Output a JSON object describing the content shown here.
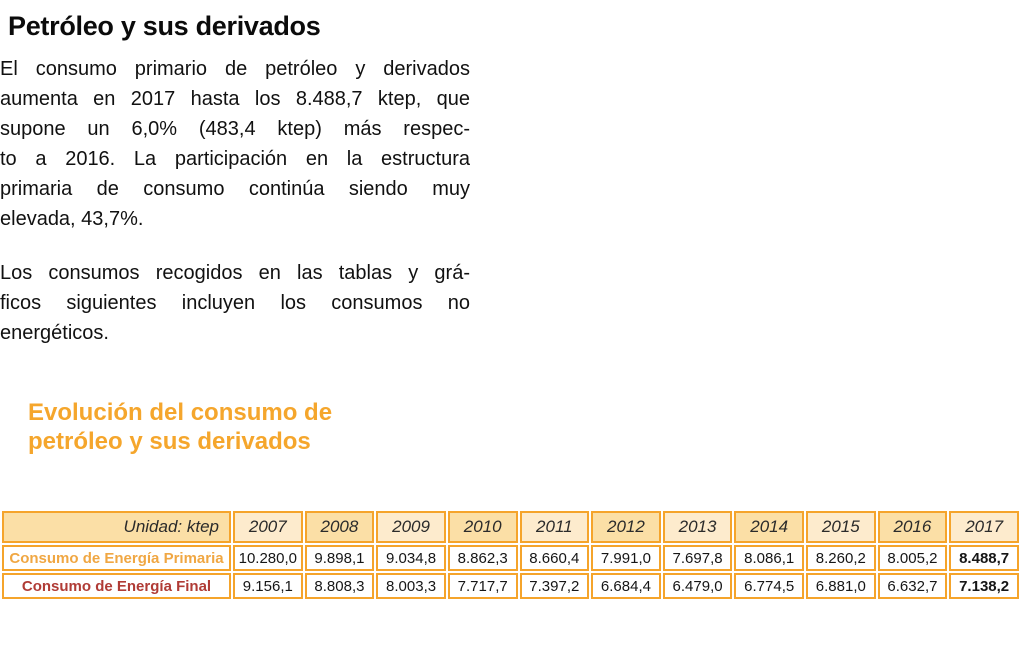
{
  "page": {
    "title": "Petróleo y sus derivados",
    "paragraphs": [
      {
        "lines": [
          "El consumo primario de petróleo y derivados",
          "aumenta en 2017 hasta los 8.488,7 ktep, que",
          "supone un 6,0% (483,4 ktep) más respec-",
          "to a 2016. La participación en la estructura",
          "primaria de consumo continúa siendo muy",
          "elevada, 43,7%."
        ]
      },
      {
        "lines": [
          "Los consumos recogidos en las tablas y grá-",
          "ficos siguientes incluyen los consumos no",
          "energéticos."
        ]
      }
    ],
    "section_heading": {
      "lines": [
        "Evolución del consumo de",
        "petróleo y sus derivados"
      ]
    }
  },
  "colors": {
    "accent_orange": "#F5A62C",
    "table_border_orange": "#F5A42B",
    "header_tan": "#FBDFA6",
    "header_cream": "#FDEBCD",
    "primary_row_label": "#F0A743",
    "final_row_label": "#B03B35"
  },
  "chart_data": {
    "type": "table",
    "unit_label": "Unidad: ktep",
    "years": [
      "2007",
      "2008",
      "2009",
      "2010",
      "2011",
      "2012",
      "2013",
      "2014",
      "2015",
      "2016",
      "2017"
    ],
    "rows": [
      {
        "label": "Consumo de Energía Primaria",
        "label_color": "#F0A743",
        "values": [
          "10.280,0",
          "9.898,1",
          "9.034,8",
          "8.862,3",
          "8.660,4",
          "7.991,0",
          "7.697,8",
          "8.086,1",
          "8.260,2",
          "8.005,2",
          "8.488,7"
        ]
      },
      {
        "label": "Consumo de Energía Final",
        "label_color": "#B03B35",
        "values": [
          "9.156,1",
          "8.808,3",
          "8.003,3",
          "7.717,7",
          "7.397,2",
          "6.684,4",
          "6.479,0",
          "6.774,5",
          "6.881,0",
          "6.632,7",
          "7.138,2"
        ]
      }
    ],
    "highlight_last_column": true
  }
}
